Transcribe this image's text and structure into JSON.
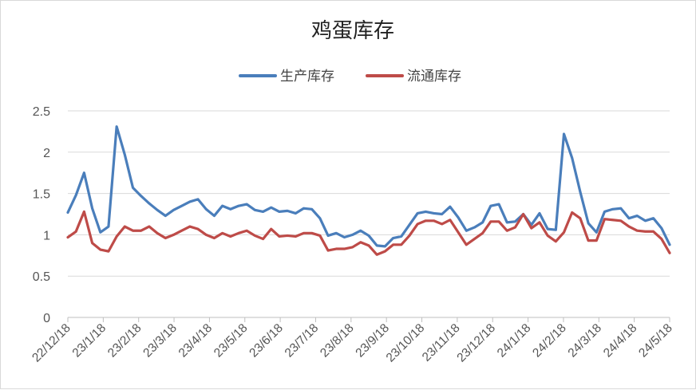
{
  "chart_data": {
    "type": "line",
    "title": "鸡蛋库存",
    "xlabel": "",
    "ylabel": "",
    "ylim": [
      0,
      2.5
    ],
    "yticks": [
      "0",
      "0.5",
      "1",
      "1.5",
      "2",
      "2.5"
    ],
    "grid": true,
    "legend_position": "top-center",
    "x_tick_labels": [
      "22/12/18",
      "23/1/18",
      "23/2/18",
      "23/3/18",
      "23/4/18",
      "23/5/18",
      "23/6/18",
      "23/7/18",
      "23/8/18",
      "23/9/18",
      "23/10/18",
      "23/11/18",
      "23/12/18",
      "24/1/18",
      "24/2/18",
      "24/3/18",
      "24/4/18",
      "24/5/18"
    ],
    "series": [
      {
        "name": "生产库存",
        "color": "#4A7EBB",
        "values": [
          1.27,
          1.48,
          1.75,
          1.32,
          1.03,
          1.1,
          2.31,
          1.97,
          1.57,
          1.47,
          1.38,
          1.3,
          1.23,
          1.3,
          1.35,
          1.4,
          1.43,
          1.31,
          1.23,
          1.35,
          1.31,
          1.35,
          1.37,
          1.3,
          1.28,
          1.33,
          1.28,
          1.29,
          1.26,
          1.32,
          1.31,
          1.2,
          0.99,
          1.02,
          0.97,
          1.0,
          1.05,
          0.99,
          0.87,
          0.86,
          0.96,
          0.98,
          1.12,
          1.26,
          1.28,
          1.26,
          1.25,
          1.34,
          1.21,
          1.05,
          1.09,
          1.15,
          1.35,
          1.37,
          1.15,
          1.16,
          1.25,
          1.12,
          1.26,
          1.07,
          1.06,
          2.22,
          1.93,
          1.52,
          1.14,
          1.03,
          1.28,
          1.31,
          1.32,
          1.2,
          1.23,
          1.17,
          1.2,
          1.08,
          0.88
        ]
      },
      {
        "name": "流通库存",
        "color": "#BE4B48",
        "values": [
          0.97,
          1.04,
          1.28,
          0.9,
          0.82,
          0.8,
          0.98,
          1.1,
          1.05,
          1.05,
          1.1,
          1.02,
          0.96,
          1.0,
          1.05,
          1.1,
          1.07,
          1.0,
          0.96,
          1.02,
          0.98,
          1.02,
          1.05,
          0.99,
          0.95,
          1.07,
          0.98,
          0.99,
          0.98,
          1.02,
          1.02,
          0.99,
          0.81,
          0.83,
          0.83,
          0.85,
          0.91,
          0.87,
          0.76,
          0.8,
          0.88,
          0.88,
          0.99,
          1.13,
          1.17,
          1.17,
          1.13,
          1.18,
          1.03,
          0.88,
          0.95,
          1.02,
          1.16,
          1.16,
          1.05,
          1.09,
          1.25,
          1.08,
          1.15,
          0.99,
          0.92,
          1.03,
          1.27,
          1.2,
          0.93,
          0.93,
          1.19,
          1.18,
          1.17,
          1.1,
          1.05,
          1.04,
          1.04,
          0.95,
          0.78
        ]
      }
    ]
  }
}
